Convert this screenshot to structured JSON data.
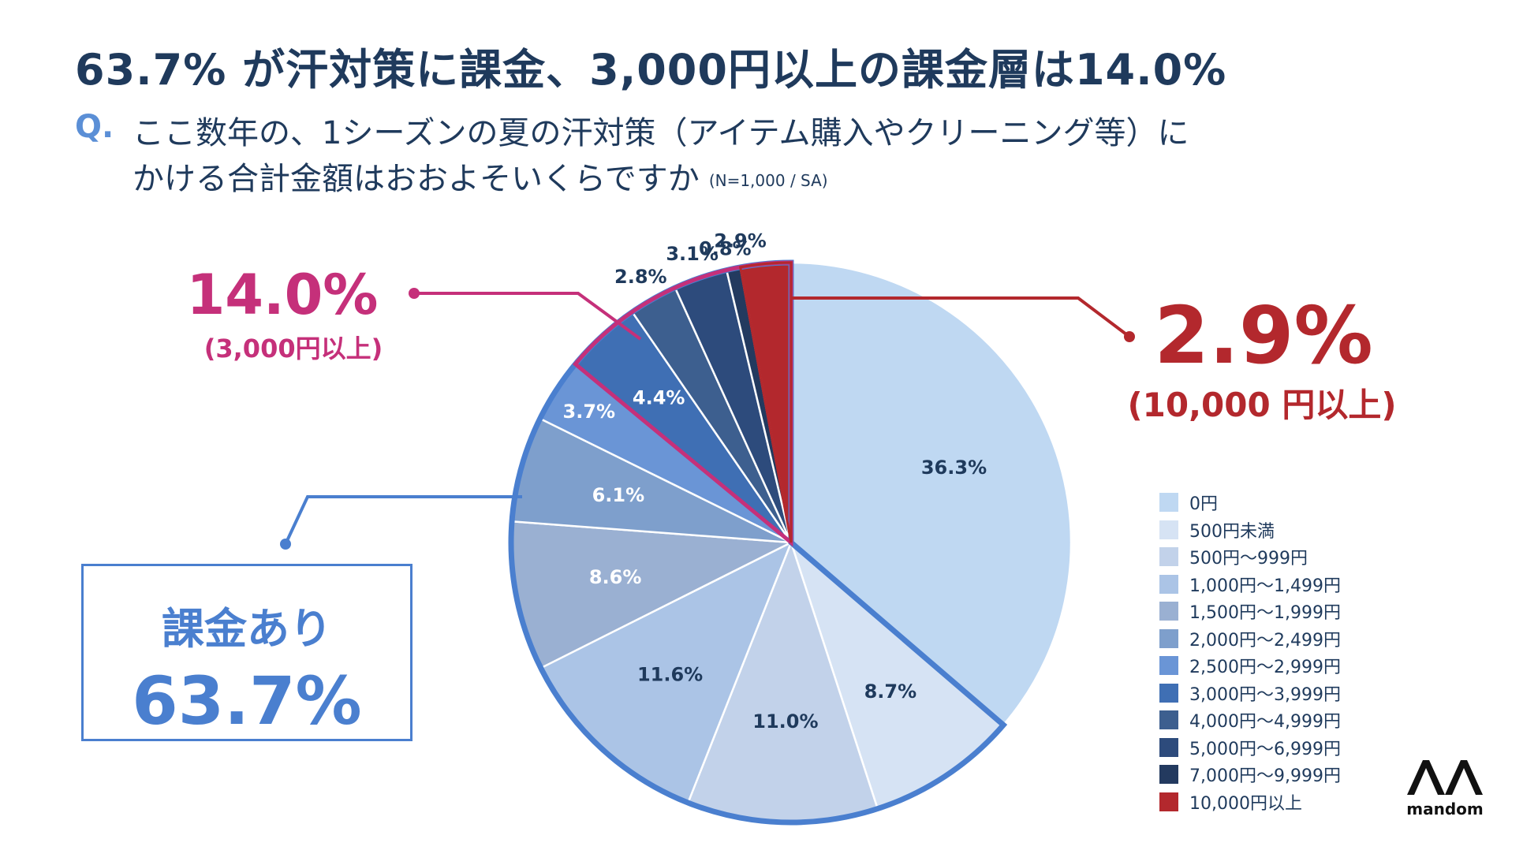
{
  "title": "63.7% が汗対策に課金、3,000円以上の課金層は14.0%",
  "question": {
    "label": "Q.",
    "line1": "ここ数年の、1シーズンの夏の汗対策（アイテム購入やクリーニング等）に",
    "line2": "かける合計金額はおおよそいくらですか",
    "note": "(N=1,000 / SA)"
  },
  "callouts": {
    "top_left": {
      "value": "14.0%",
      "label": "(3,000円以上)",
      "color": "#c5307a"
    },
    "top_right": {
      "value": "2.9%",
      "label": "(10,000 円以上)",
      "color": "#b3282d"
    },
    "box": {
      "label": "課金あり",
      "value": "63.7%",
      "color": "#4a7fcf"
    }
  },
  "logo": {
    "text": "mandom"
  },
  "chart_data": {
    "type": "pie",
    "slices": [
      {
        "label": "0円",
        "value": 36.3,
        "display": "36.3%",
        "color": "#bfd8f2"
      },
      {
        "label": "500円未満",
        "value": 8.7,
        "display": "8.7%",
        "color": "#d6e3f4"
      },
      {
        "label": "500円〜999円",
        "value": 11.0,
        "display": "11.0%",
        "color": "#c2d2ea"
      },
      {
        "label": "1,000円〜1,499円",
        "value": 11.6,
        "display": "11.6%",
        "color": "#abc4e6"
      },
      {
        "label": "1,500円〜1,999円",
        "value": 8.6,
        "display": "8.6%",
        "color": "#9ab0d2"
      },
      {
        "label": "2,000円〜2,499円",
        "value": 6.1,
        "display": "6.1%",
        "color": "#7e9fcc"
      },
      {
        "label": "2,500円〜2,999円",
        "value": 3.7,
        "display": "3.7%",
        "color": "#6a95d6"
      },
      {
        "label": "3,000円〜3,999円",
        "value": 4.4,
        "display": "4.4%",
        "color": "#3f6fb4"
      },
      {
        "label": "4,000円〜4,999円",
        "value": 2.8,
        "display": "2.8%",
        "color": "#3d5f8f"
      },
      {
        "label": "5,000円〜6,999円",
        "value": 3.1,
        "display": "3.1%",
        "color": "#2d4b7c"
      },
      {
        "label": "7,000円〜9,999円",
        "value": 0.8,
        "display": "0.8%",
        "color": "#233a5f"
      },
      {
        "label": "10,000円以上",
        "value": 2.9,
        "display": "2.9%",
        "color": "#b3282d"
      }
    ]
  }
}
